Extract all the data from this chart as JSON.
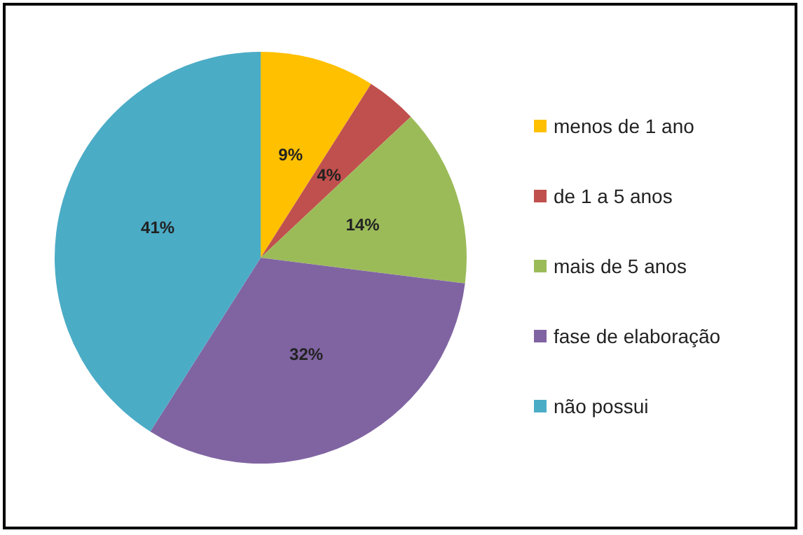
{
  "chart_data": {
    "type": "pie",
    "categories": [
      "menos de 1 ano",
      "de 1 a 5 anos",
      "mais de 5 anos",
      "fase de elaboração",
      "não possui"
    ],
    "values": [
      9,
      4,
      14,
      32,
      41
    ],
    "colors": [
      "#ffc000",
      "#c0504d",
      "#9bbb59",
      "#8064a2",
      "#4bacc6"
    ],
    "value_labels": [
      "9%",
      "4%",
      "14%",
      "32%",
      "41%"
    ],
    "legend": "right"
  }
}
